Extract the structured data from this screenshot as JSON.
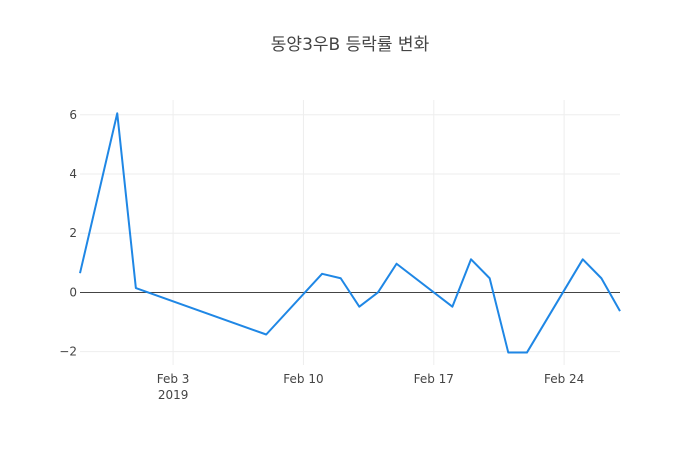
{
  "chart_data": {
    "type": "line",
    "title": "동양3우B 등락률 변화",
    "xlabel": "",
    "ylabel": "",
    "x": [
      "2019-01-29",
      "2019-01-31",
      "2019-02-01",
      "2019-02-08",
      "2019-02-11",
      "2019-02-12",
      "2019-02-13",
      "2019-02-14",
      "2019-02-15",
      "2019-02-18",
      "2019-02-19",
      "2019-02-20",
      "2019-02-21",
      "2019-02-22",
      "2019-02-25",
      "2019-02-26",
      "2019-02-27"
    ],
    "series": [
      {
        "values": [
          0.65,
          6.05,
          0.15,
          -1.42,
          0.63,
          0.48,
          -0.48,
          0.0,
          0.97,
          -0.48,
          1.12,
          0.48,
          -2.03,
          -2.03,
          1.12,
          0.48,
          -0.63
        ],
        "color": "#1f87e5"
      }
    ],
    "xlim": [
      "2019-01-29",
      "2019-02-27"
    ],
    "ylim": [
      -2.45,
      6.5
    ],
    "x_ticks": [
      {
        "date": "2019-02-03",
        "label": "Feb 3",
        "sublabel": "2019"
      },
      {
        "date": "2019-02-10",
        "label": "Feb 10",
        "sublabel": ""
      },
      {
        "date": "2019-02-17",
        "label": "Feb 17",
        "sublabel": ""
      },
      {
        "date": "2019-02-24",
        "label": "Feb 24",
        "sublabel": ""
      }
    ],
    "y_ticks": [
      {
        "value": -2,
        "label": "−2"
      },
      {
        "value": 0,
        "label": "0"
      },
      {
        "value": 2,
        "label": "2"
      },
      {
        "value": 4,
        "label": "4"
      },
      {
        "value": 6,
        "label": "6"
      }
    ],
    "grid": true,
    "zero_line": true,
    "legend": "none"
  }
}
